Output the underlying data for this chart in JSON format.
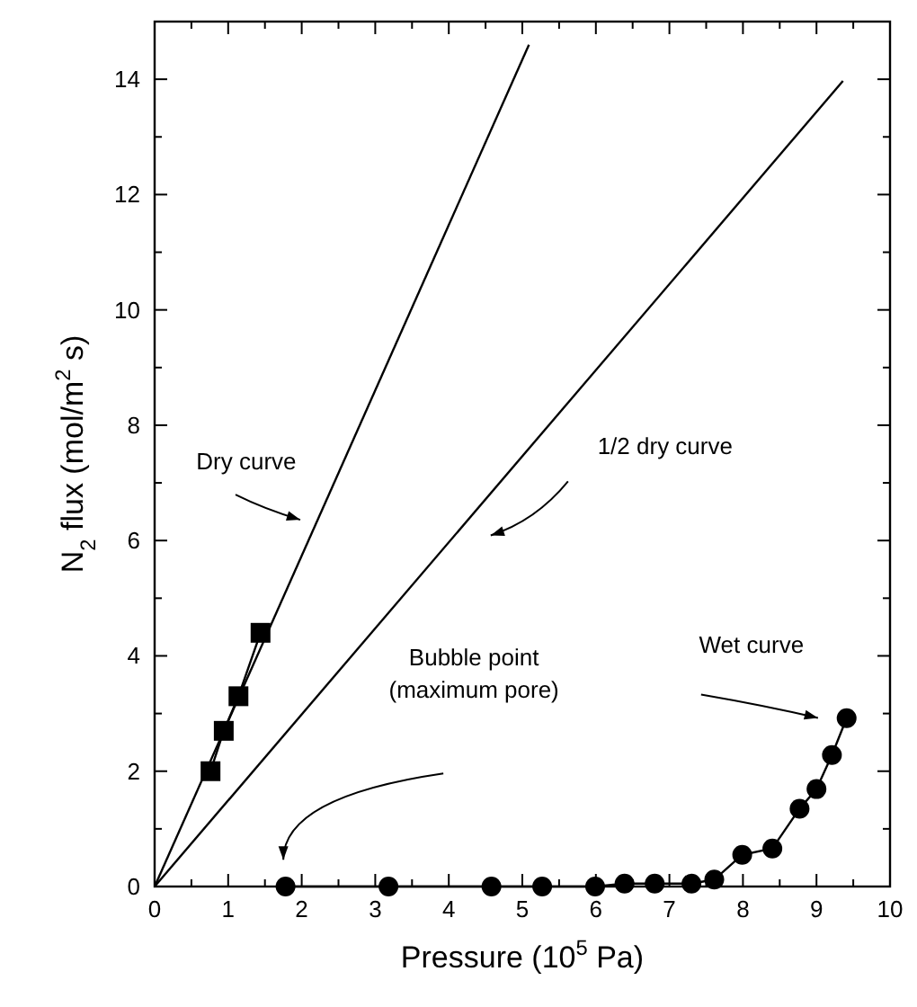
{
  "chart_data": {
    "type": "line",
    "xlabel": "Pressure (10$^{5}$ Pa)",
    "ylabel": "N$_{2}$ flux (mol/m$^{2}$ s)",
    "xlim": [
      0,
      10
    ],
    "ylim": [
      0,
      15
    ],
    "xticks": [
      0,
      {
        "value": 0.5,
        "label": null
      },
      1,
      {
        "value": 1.5,
        "label": null
      },
      2,
      {
        "value": 2.5,
        "label": null
      },
      3,
      {
        "value": 3.5,
        "label": null
      },
      4,
      {
        "value": 4.5,
        "label": null
      },
      5,
      {
        "value": 5.5,
        "label": null
      },
      6,
      {
        "value": 6.5,
        "label": null
      },
      7,
      {
        "value": 7.5,
        "label": null
      },
      8,
      {
        "value": 8.5,
        "label": null
      },
      9,
      {
        "value": 9.5,
        "label": null
      },
      10
    ],
    "yticks": [
      0,
      {
        "value": 1,
        "label": null
      },
      2,
      {
        "value": 3,
        "label": null
      },
      4,
      {
        "value": 5,
        "label": null
      },
      6,
      {
        "value": 7,
        "label": null
      },
      8,
      {
        "value": 9,
        "label": null
      },
      10,
      {
        "value": 11,
        "label": null
      },
      12,
      {
        "value": 13,
        "label": null
      },
      14
    ],
    "grid": false,
    "series": [
      {
        "type": "line",
        "color": "#000000",
        "x": [
          0,
          5.09
        ],
        "values": [
          0,
          14.6
        ]
      },
      {
        "type": "line",
        "marker": "square",
        "color": "#000000",
        "x": [
          0.76,
          0.94,
          1.14,
          1.44
        ],
        "values": [
          2.0,
          2.7,
          3.3,
          4.4
        ]
      },
      {
        "type": "line",
        "color": "#000000",
        "x": [
          0,
          9.36
        ],
        "values": [
          0,
          13.97
        ]
      },
      {
        "type": "line",
        "marker": "circle",
        "color": "#000000",
        "x": [
          1.78,
          3.18,
          4.58,
          5.27,
          5.99,
          6.39,
          6.8,
          7.3,
          7.61,
          7.99,
          8.4,
          8.77,
          9.0,
          9.21,
          9.41
        ],
        "values": [
          0,
          0,
          0,
          0,
          0,
          0.05,
          0.05,
          0.05,
          0.12,
          0.55,
          0.66,
          1.35,
          1.69,
          2.28,
          2.92
        ]
      }
    ],
    "annotations": [
      "Dry curve",
      "1/2 dry curve",
      "Bubble point\n(maximum pore)",
      "Wet curve"
    ]
  }
}
